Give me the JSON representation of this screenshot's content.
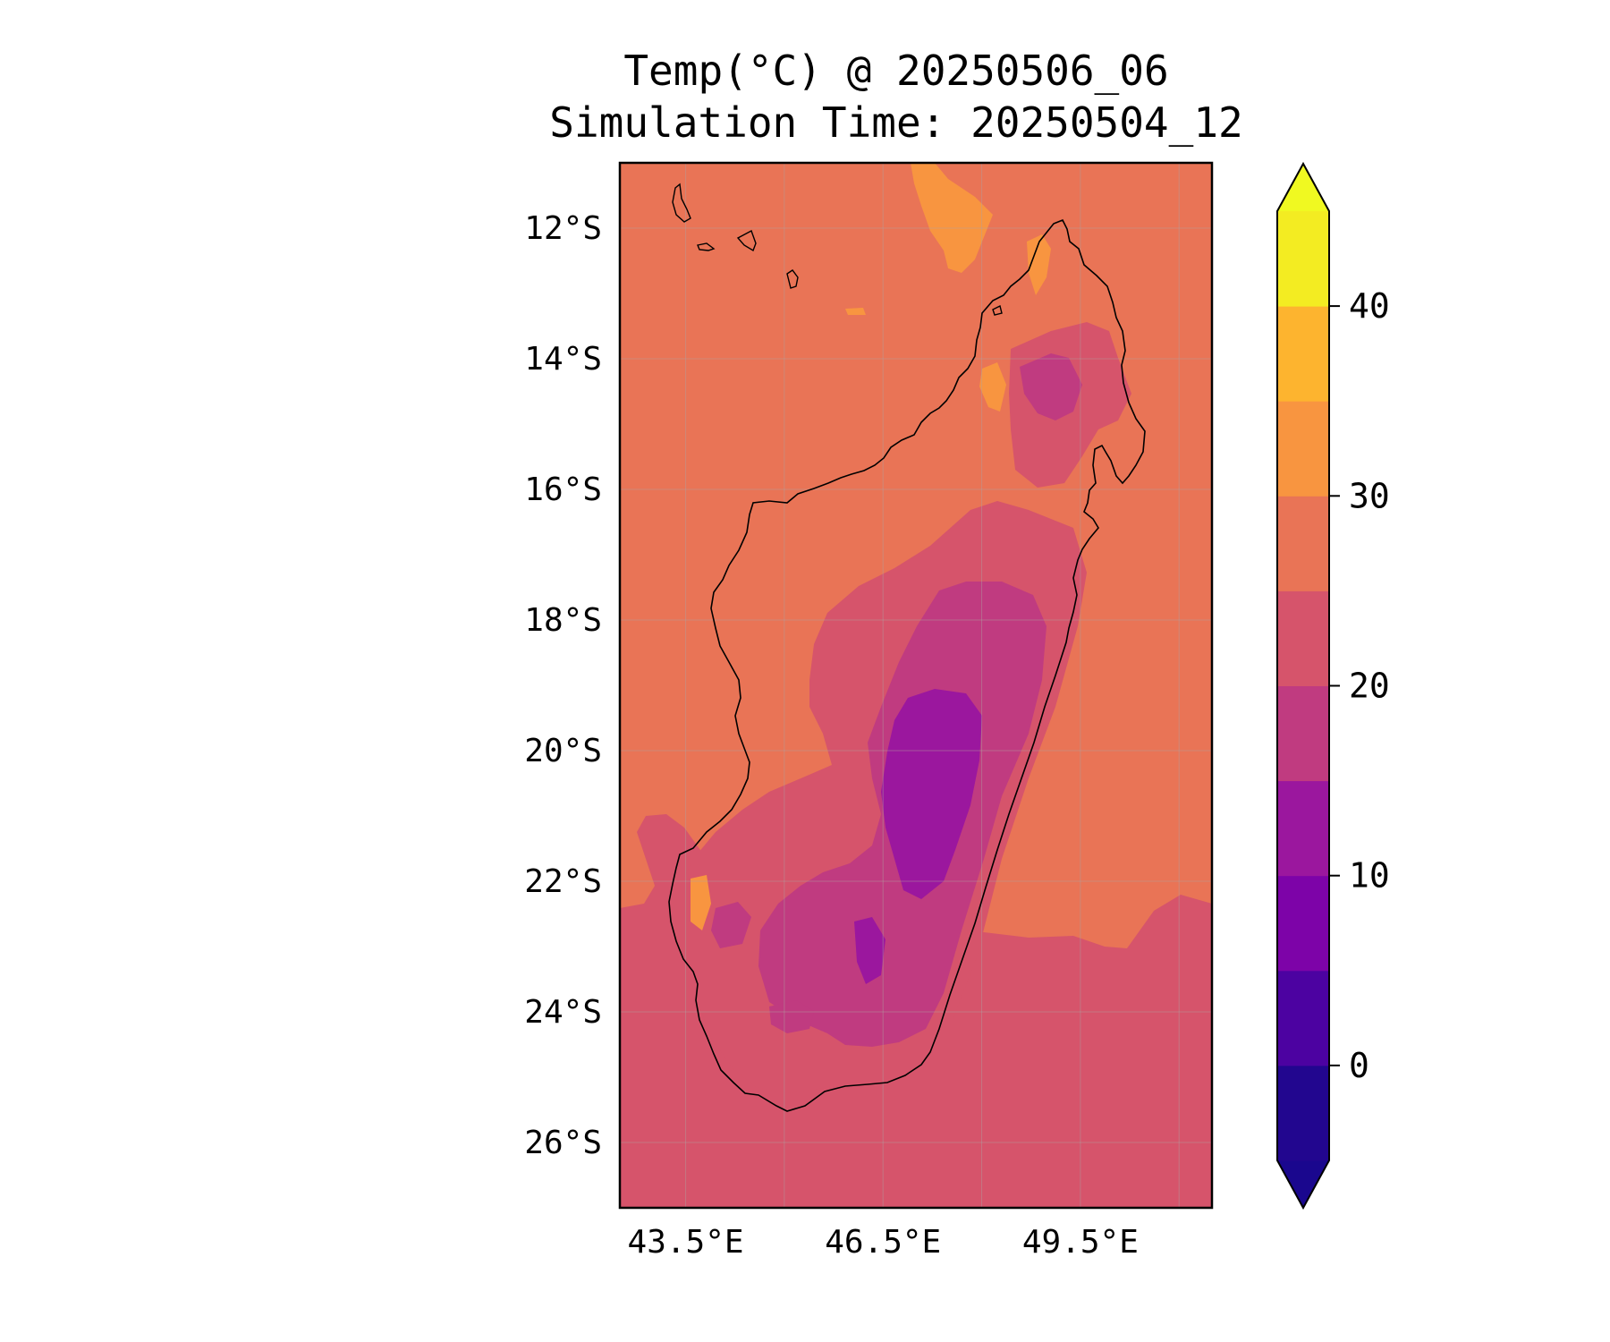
{
  "title_line1": "Temp(°C) @ 20250506_06",
  "title_line2": "Simulation Time: 20250504_12",
  "map": {
    "region": "Madagascar",
    "lon_range": [
      42.5,
      51.5
    ],
    "lat_range": [
      -27,
      -11
    ],
    "lat_ticks": [
      "12°S",
      "14°S",
      "16°S",
      "18°S",
      "20°S",
      "22°S",
      "24°S",
      "26°S"
    ],
    "lat_tick_values": [
      -12,
      -14,
      -16,
      -18,
      -20,
      -22,
      -24,
      -26
    ],
    "lon_ticks": [
      "43.5°E",
      "46.5°E",
      "49.5°E"
    ],
    "lon_tick_values": [
      43.5,
      46.5,
      49.5
    ],
    "gridlines": true,
    "ocean_north_color": "#e97456",
    "ocean_south_color": "#d6546b",
    "coastline_color": "#000000"
  },
  "colorbar": {
    "label_values": [
      "0",
      "10",
      "20",
      "30",
      "40"
    ],
    "levels": [
      -5,
      0,
      5,
      10,
      15,
      20,
      25,
      30,
      35,
      40,
      45
    ],
    "extend": "both",
    "colormap": "plasma",
    "colors": [
      "#1a078e",
      "#22068f",
      "#4c02a1",
      "#7d03a8",
      "#9b179e",
      "#c03b80",
      "#d6546b",
      "#e97456",
      "#f89540",
      "#fdb42f",
      "#f3ec22",
      "#f0f921"
    ]
  }
}
